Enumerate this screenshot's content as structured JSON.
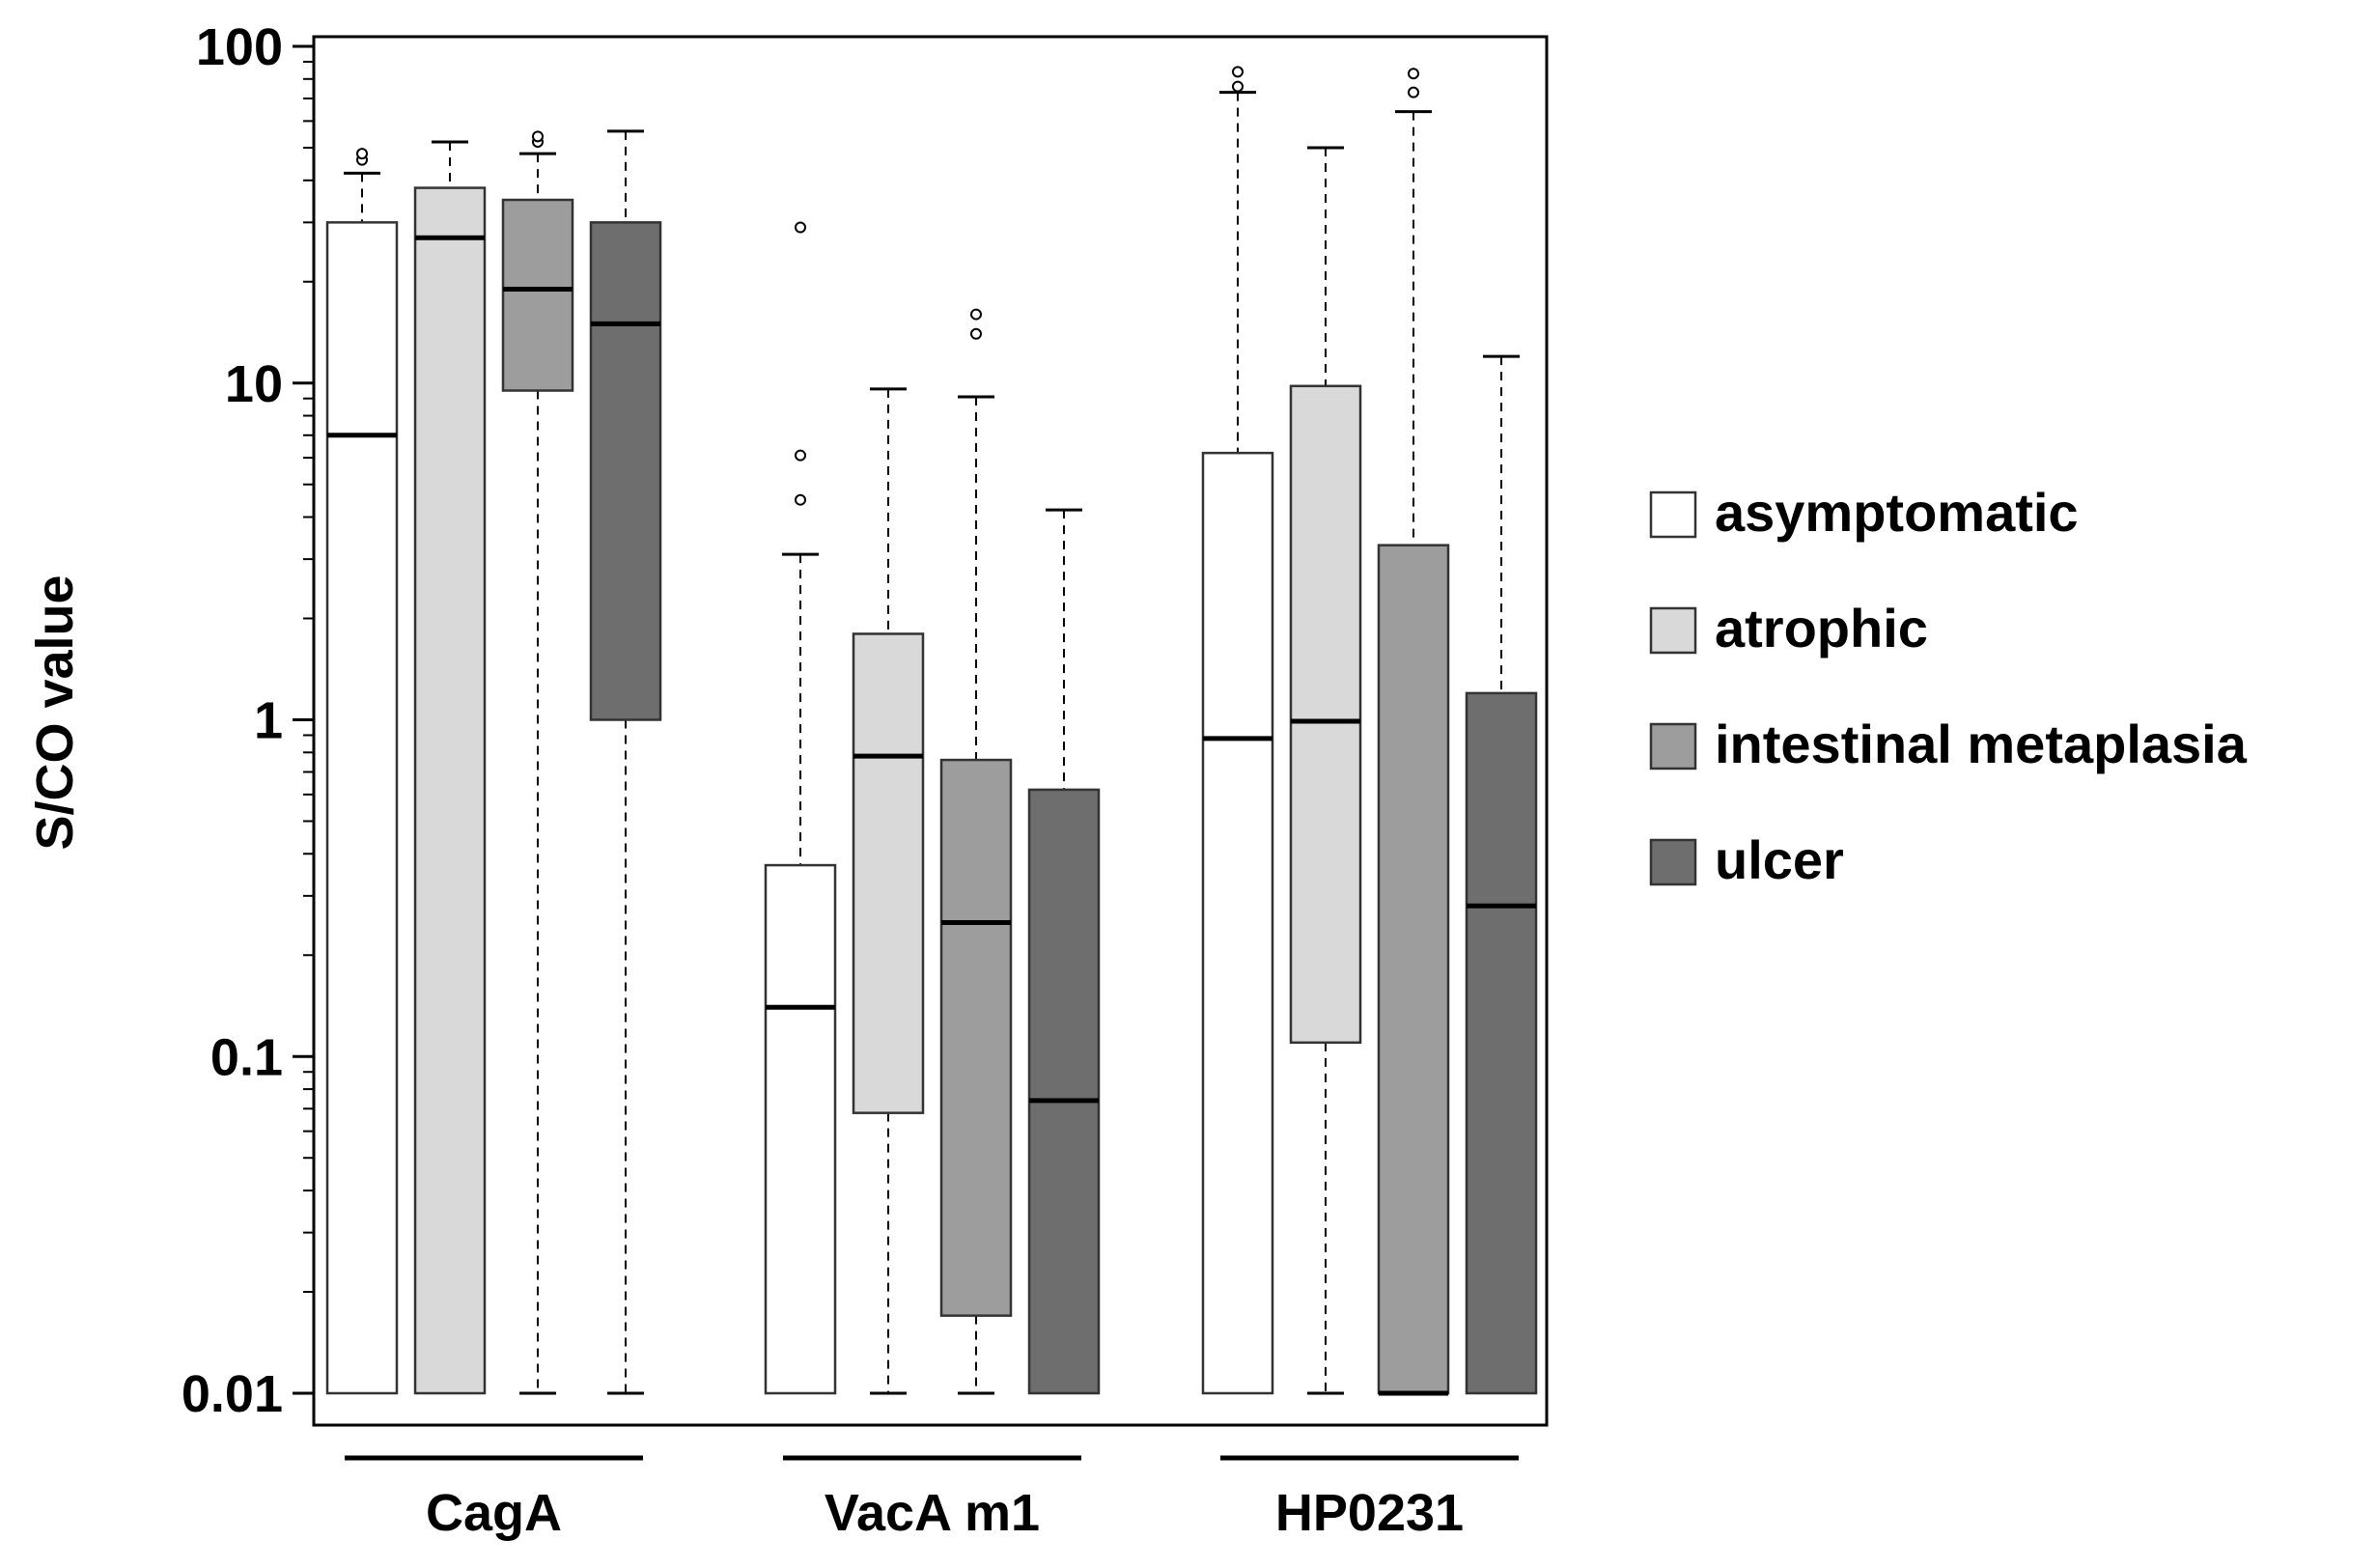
{
  "chart_data": {
    "type": "box",
    "title": "",
    "ylabel": "S/CO value",
    "xlabel": "",
    "yscale": "log",
    "ylim": [
      0.01,
      100
    ],
    "yticks": [
      {
        "value": 100,
        "label": "100"
      },
      {
        "value": 10,
        "label": "10"
      },
      {
        "value": 1,
        "label": "1"
      },
      {
        "value": 0.1,
        "label": "0.1"
      },
      {
        "value": 0.01,
        "label": "0.01"
      }
    ],
    "legend_position": "right",
    "groups": [
      {
        "name": "CagA",
        "boxes": [
          {
            "series": "asymptomatic",
            "whisker_low": 0.01,
            "q1": 0.01,
            "median": 7,
            "q3": 30,
            "whisker_high": 42,
            "outliers": [
              46,
              48
            ]
          },
          {
            "series": "atrophic",
            "whisker_low": 0.01,
            "q1": 0.01,
            "median": 27,
            "q3": 38,
            "whisker_high": 52,
            "outliers": []
          },
          {
            "series": "intestinal metaplasia",
            "whisker_low": 0.01,
            "q1": 9.5,
            "median": 19,
            "q3": 35,
            "whisker_high": 48,
            "outliers": [
              52,
              54
            ]
          },
          {
            "series": "ulcer",
            "whisker_low": 0.01,
            "q1": 1,
            "median": 15,
            "q3": 30,
            "whisker_high": 56,
            "outliers": []
          }
        ]
      },
      {
        "name": "VacA m1",
        "boxes": [
          {
            "series": "asymptomatic",
            "whisker_low": 0.01,
            "q1": 0.01,
            "median": 0.14,
            "q3": 0.37,
            "whisker_high": 3.1,
            "outliers": [
              4.5,
              6.1,
              29
            ]
          },
          {
            "series": "atrophic",
            "whisker_low": 0.01,
            "q1": 0.068,
            "median": 0.78,
            "q3": 1.8,
            "whisker_high": 9.6,
            "outliers": []
          },
          {
            "series": "intestinal metaplasia",
            "whisker_low": 0.01,
            "q1": 0.017,
            "median": 0.25,
            "q3": 0.76,
            "whisker_high": 9.1,
            "outliers": [
              14,
              16
            ]
          },
          {
            "series": "ulcer",
            "whisker_low": 0.01,
            "q1": 0.01,
            "median": 0.074,
            "q3": 0.62,
            "whisker_high": 4.2,
            "outliers": []
          }
        ]
      },
      {
        "name": "HP0231",
        "boxes": [
          {
            "series": "asymptomatic",
            "whisker_low": 0.01,
            "q1": 0.01,
            "median": 0.88,
            "q3": 6.2,
            "whisker_high": 73,
            "outliers": [
              76,
              84
            ]
          },
          {
            "series": "atrophic",
            "whisker_low": 0.01,
            "q1": 0.11,
            "median": 0.99,
            "q3": 9.8,
            "whisker_high": 50,
            "outliers": []
          },
          {
            "series": "intestinal metaplasia",
            "whisker_low": 0.01,
            "q1": 0.01,
            "median": 0.01,
            "q3": 3.3,
            "whisker_high": 64,
            "outliers": [
              73,
              83
            ]
          },
          {
            "series": "ulcer",
            "whisker_low": 0.01,
            "q1": 0.01,
            "median": 0.28,
            "q3": 1.2,
            "whisker_high": 12,
            "outliers": []
          }
        ]
      }
    ],
    "series": [
      {
        "name": "asymptomatic",
        "color": "#ffffff"
      },
      {
        "name": "atrophic",
        "color": "#d9d9d9"
      },
      {
        "name": "intestinal metaplasia",
        "color": "#9d9d9d"
      },
      {
        "name": "ulcer",
        "color": "#6e6e6e"
      }
    ],
    "colors": {
      "axis": "#000000",
      "box_stroke": "#333333",
      "median": "#000000"
    }
  }
}
